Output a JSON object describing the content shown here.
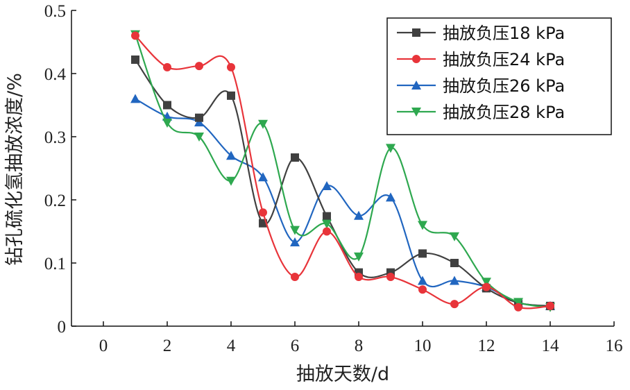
{
  "chart_data": {
    "type": "line",
    "xlabel": "抽放天数/d",
    "ylabel": "钻孔硫化氢抽放浓度/%",
    "xlim": [
      -1,
      16
    ],
    "ylim": [
      0,
      0.5
    ],
    "xticks": [
      0,
      2,
      4,
      6,
      8,
      10,
      12,
      14,
      16
    ],
    "xtick_labels": [
      "0",
      "2",
      "4",
      "6",
      "8",
      "10",
      "12",
      "14",
      "16"
    ],
    "yticks": [
      0,
      0.1,
      0.2,
      0.3,
      0.4,
      0.5
    ],
    "ytick_labels": [
      "0",
      "0.1",
      "0.2",
      "0.3",
      "0.4",
      "0.5"
    ],
    "legend_position": "top-right",
    "grid": false,
    "x": [
      1,
      2,
      3,
      4,
      5,
      6,
      7,
      8,
      9,
      10,
      11,
      12,
      13,
      14
    ],
    "series": [
      {
        "name": "抽放负压18 kPa",
        "color": "#404040",
        "marker": "square",
        "values": [
          0.422,
          0.35,
          0.33,
          0.365,
          0.163,
          0.267,
          0.174,
          0.085,
          0.085,
          0.115,
          0.1,
          0.06,
          0.037,
          0.032
        ]
      },
      {
        "name": "抽放负压24 kPa",
        "color": "#e8343a",
        "marker": "circle",
        "values": [
          0.46,
          0.41,
          0.412,
          0.41,
          0.18,
          0.078,
          0.15,
          0.078,
          0.078,
          0.058,
          0.035,
          0.062,
          0.03,
          0.032
        ]
      },
      {
        "name": "抽放负压26 kPa",
        "color": "#2166c0",
        "marker": "triangle-up",
        "values": [
          0.36,
          0.332,
          0.323,
          0.27,
          0.236,
          0.133,
          0.222,
          0.175,
          0.204,
          0.072,
          0.072,
          0.062,
          0.037,
          0.032
        ]
      },
      {
        "name": "抽放负压28 kPa",
        "color": "#2ea84f",
        "marker": "triangle-down",
        "values": [
          0.462,
          0.322,
          0.3,
          0.23,
          0.32,
          0.152,
          0.162,
          0.11,
          0.282,
          0.16,
          0.142,
          0.07,
          0.038,
          0.03
        ]
      }
    ]
  }
}
